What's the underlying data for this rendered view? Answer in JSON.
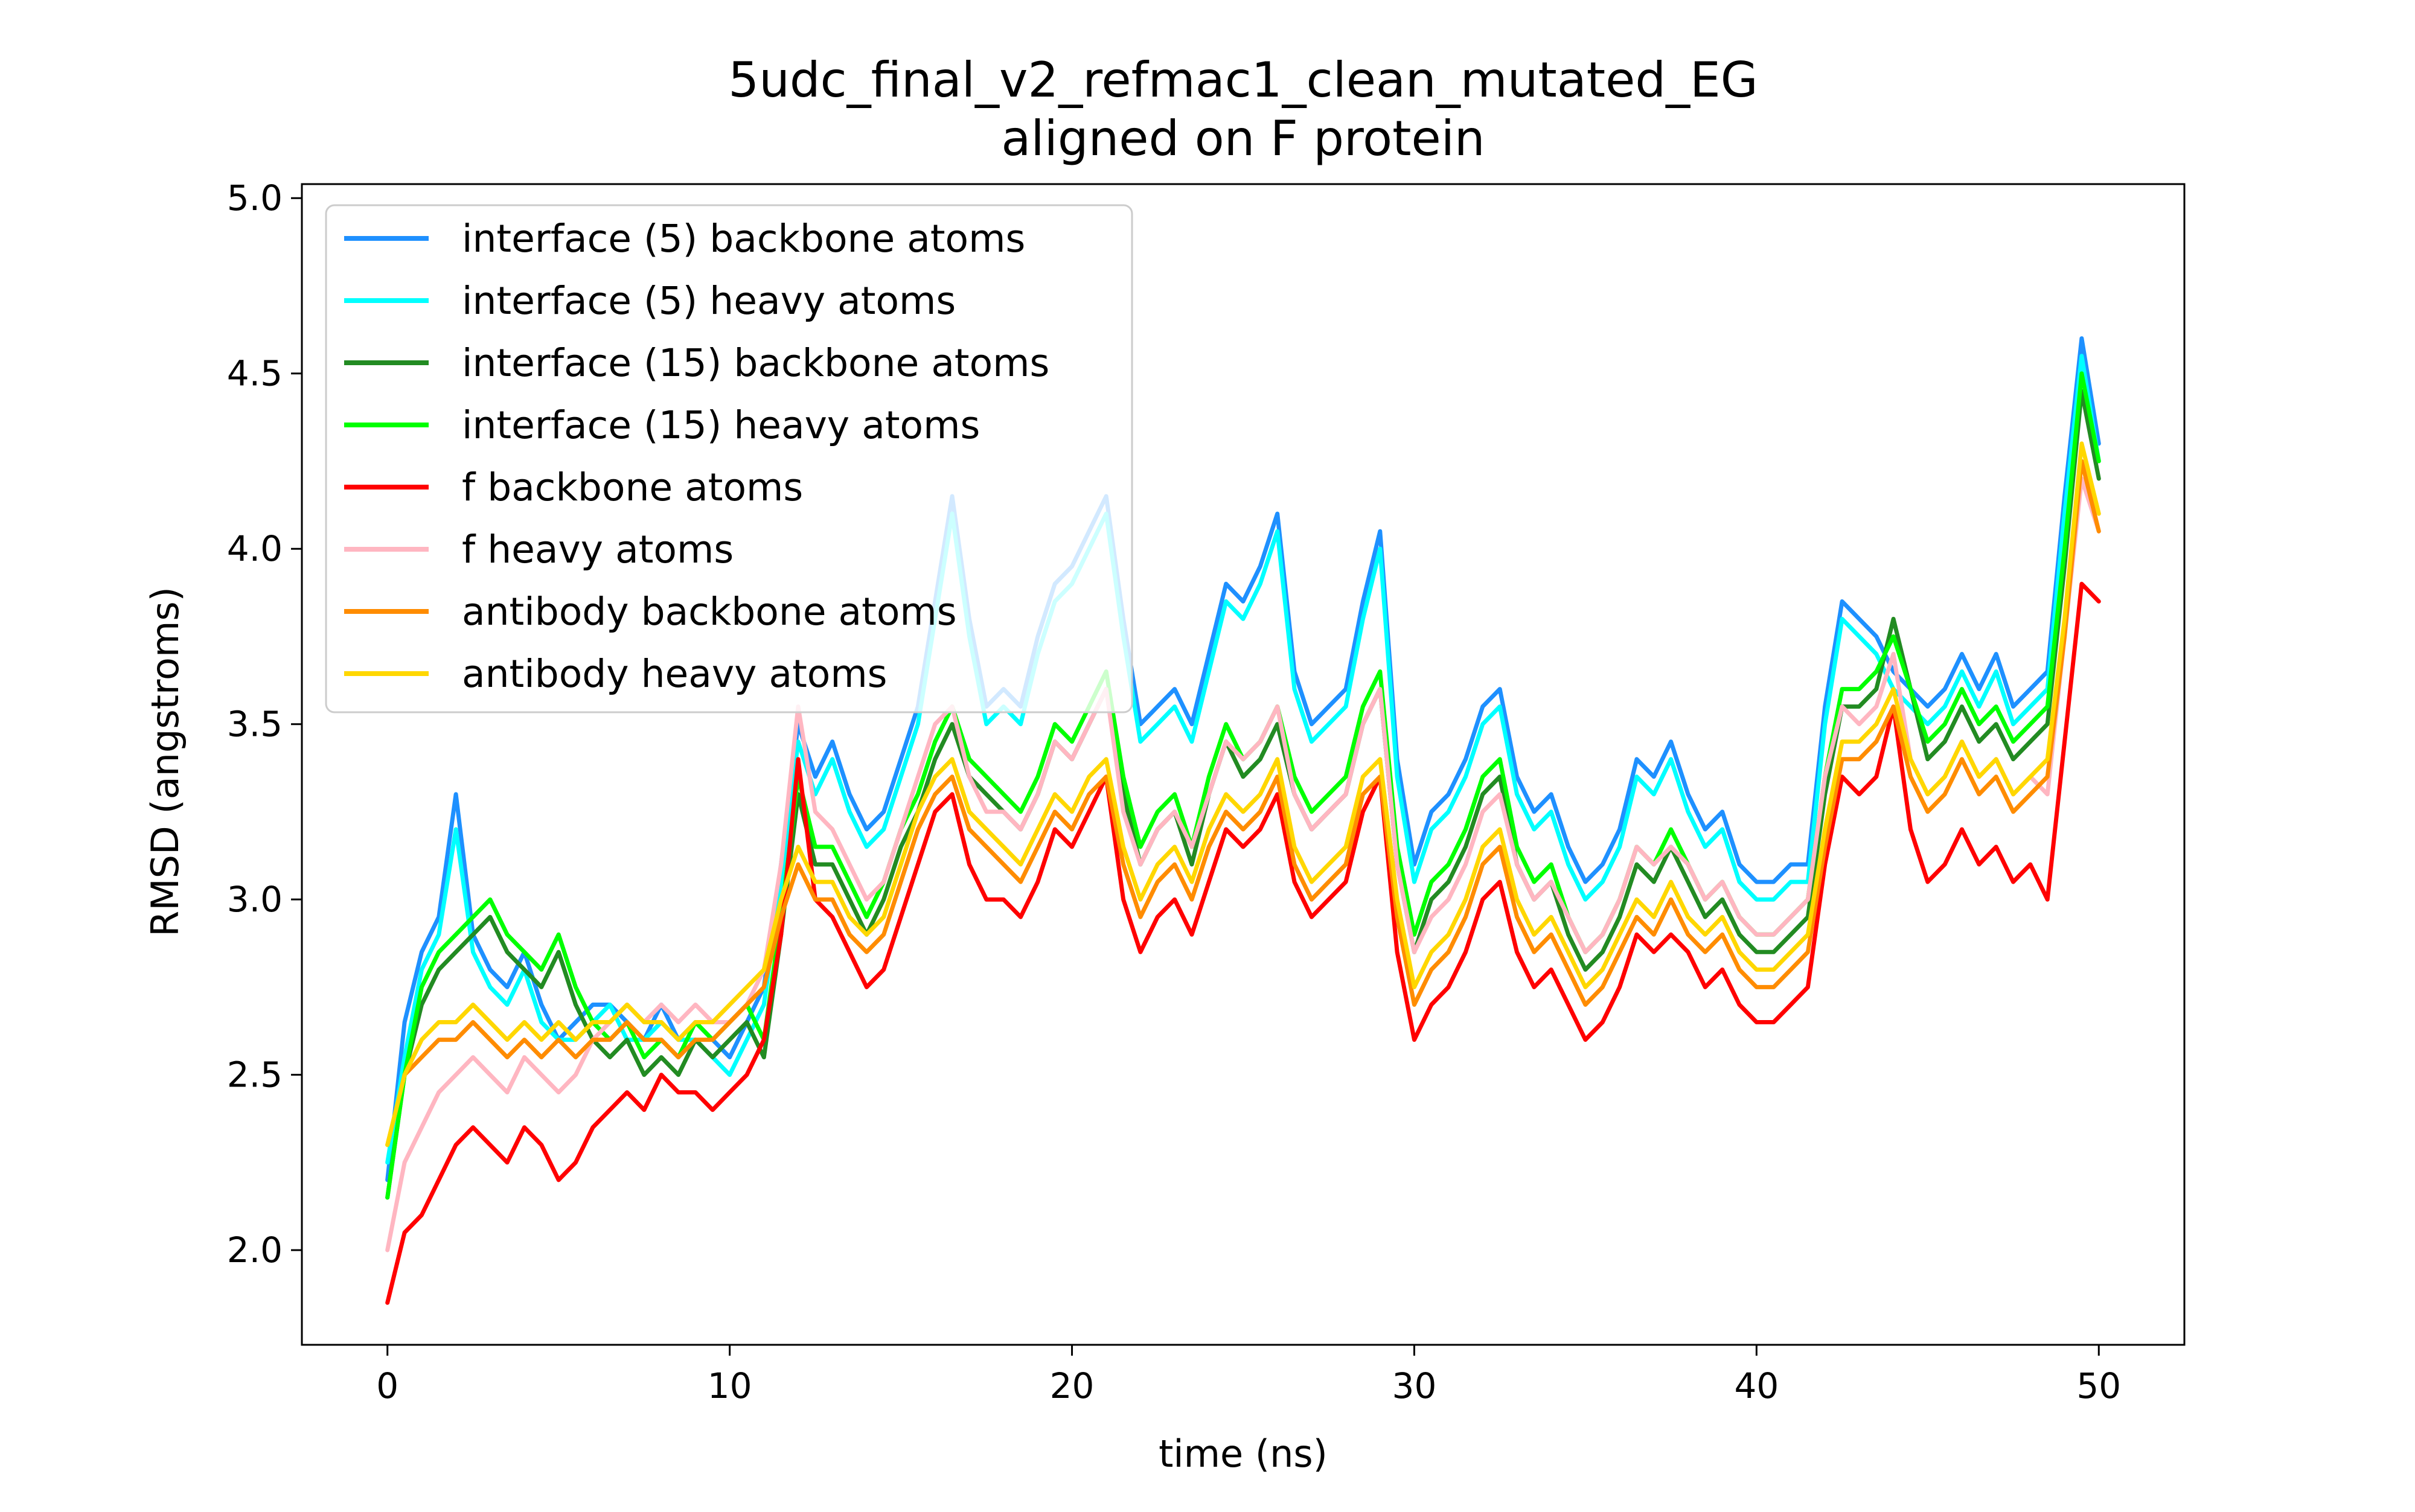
{
  "chart_data": {
    "type": "line",
    "title": "5udc_final_v2_refmac1_clean_mutated_EG",
    "subtitle": "aligned on F protein",
    "xlabel": "time (ns)",
    "ylabel": "RMSD (angstroms)",
    "xlim": [
      -2.5,
      52.5
    ],
    "ylim": [
      1.73,
      5.04
    ],
    "x_ticks": [
      0,
      10,
      20,
      30,
      40,
      50
    ],
    "x_tick_labels": [
      "0",
      "10",
      "20",
      "30",
      "40",
      "50"
    ],
    "y_ticks": [
      2.0,
      2.5,
      3.0,
      3.5,
      4.0,
      4.5,
      5.0
    ],
    "y_tick_labels": [
      "2.0",
      "2.5",
      "3.0",
      "3.5",
      "4.0",
      "4.5",
      "5.0"
    ],
    "grid": false,
    "legend_position": "upper-left",
    "x": [
      0,
      0.5,
      1,
      1.5,
      2,
      2.5,
      3,
      3.5,
      4,
      4.5,
      5,
      5.5,
      6,
      6.5,
      7,
      7.5,
      8,
      8.5,
      9,
      9.5,
      10,
      10.5,
      11,
      11.5,
      12,
      12.5,
      13,
      13.5,
      14,
      14.5,
      15,
      15.5,
      16,
      16.5,
      17,
      17.5,
      18,
      18.5,
      19,
      19.5,
      20,
      20.5,
      21,
      21.5,
      22,
      22.5,
      23,
      23.5,
      24,
      24.5,
      25,
      25.5,
      26,
      26.5,
      27,
      27.5,
      28,
      28.5,
      29,
      29.5,
      30,
      30.5,
      31,
      31.5,
      32,
      32.5,
      33,
      33.5,
      34,
      34.5,
      35,
      35.5,
      36,
      36.5,
      37,
      37.5,
      38,
      38.5,
      39,
      39.5,
      40,
      40.5,
      41,
      41.5,
      42,
      42.5,
      43,
      43.5,
      44,
      44.5,
      45,
      45.5,
      46,
      46.5,
      47,
      47.5,
      48,
      48.5,
      49,
      49.5,
      50
    ],
    "series": [
      {
        "name": "interface (5) backbone atoms",
        "color": "#1e90ff",
        "values": [
          2.2,
          2.65,
          2.85,
          2.95,
          3.3,
          2.9,
          2.8,
          2.75,
          2.85,
          2.7,
          2.6,
          2.65,
          2.7,
          2.7,
          2.65,
          2.6,
          2.7,
          2.6,
          2.65,
          2.6,
          2.55,
          2.65,
          2.75,
          3.1,
          3.5,
          3.35,
          3.45,
          3.3,
          3.2,
          3.25,
          3.4,
          3.55,
          3.85,
          4.15,
          3.8,
          3.55,
          3.6,
          3.55,
          3.75,
          3.9,
          3.95,
          4.05,
          4.15,
          3.8,
          3.5,
          3.55,
          3.6,
          3.5,
          3.7,
          3.9,
          3.85,
          3.95,
          4.1,
          3.65,
          3.5,
          3.55,
          3.6,
          3.85,
          4.05,
          3.4,
          3.1,
          3.25,
          3.3,
          3.4,
          3.55,
          3.6,
          3.35,
          3.25,
          3.3,
          3.15,
          3.05,
          3.1,
          3.2,
          3.4,
          3.35,
          3.45,
          3.3,
          3.2,
          3.25,
          3.1,
          3.05,
          3.05,
          3.1,
          3.1,
          3.55,
          3.85,
          3.8,
          3.75,
          3.65,
          3.6,
          3.55,
          3.6,
          3.7,
          3.6,
          3.7,
          3.55,
          3.6,
          3.65,
          4.15,
          4.6,
          4.3
        ]
      },
      {
        "name": "interface (5) heavy atoms",
        "color": "#00ffff",
        "values": [
          2.25,
          2.55,
          2.8,
          2.9,
          3.2,
          2.85,
          2.75,
          2.7,
          2.8,
          2.65,
          2.6,
          2.6,
          2.65,
          2.7,
          2.6,
          2.6,
          2.65,
          2.6,
          2.6,
          2.55,
          2.5,
          2.6,
          2.7,
          3.05,
          3.45,
          3.3,
          3.4,
          3.25,
          3.15,
          3.2,
          3.35,
          3.5,
          3.8,
          4.1,
          3.75,
          3.5,
          3.55,
          3.5,
          3.7,
          3.85,
          3.9,
          4.0,
          4.1,
          3.75,
          3.45,
          3.5,
          3.55,
          3.45,
          3.65,
          3.85,
          3.8,
          3.9,
          4.05,
          3.6,
          3.45,
          3.5,
          3.55,
          3.8,
          4.0,
          3.35,
          3.05,
          3.2,
          3.25,
          3.35,
          3.5,
          3.55,
          3.3,
          3.2,
          3.25,
          3.1,
          3.0,
          3.05,
          3.15,
          3.35,
          3.3,
          3.4,
          3.25,
          3.15,
          3.2,
          3.05,
          3.0,
          3.0,
          3.05,
          3.05,
          3.5,
          3.8,
          3.75,
          3.7,
          3.6,
          3.55,
          3.5,
          3.55,
          3.65,
          3.55,
          3.65,
          3.5,
          3.55,
          3.6,
          4.1,
          4.55,
          4.25
        ]
      },
      {
        "name": "interface (15) backbone atoms",
        "color": "#228b22",
        "values": [
          2.15,
          2.5,
          2.7,
          2.8,
          2.85,
          2.9,
          2.95,
          2.85,
          2.8,
          2.75,
          2.85,
          2.7,
          2.6,
          2.55,
          2.6,
          2.5,
          2.55,
          2.5,
          2.6,
          2.55,
          2.6,
          2.65,
          2.55,
          2.9,
          3.3,
          3.1,
          3.1,
          3.0,
          2.9,
          3.0,
          3.15,
          3.25,
          3.4,
          3.5,
          3.35,
          3.3,
          3.25,
          3.2,
          3.3,
          3.45,
          3.4,
          3.5,
          3.6,
          3.3,
          3.1,
          3.2,
          3.25,
          3.1,
          3.3,
          3.45,
          3.35,
          3.4,
          3.5,
          3.3,
          3.2,
          3.25,
          3.3,
          3.5,
          3.6,
          3.1,
          2.85,
          3.0,
          3.05,
          3.15,
          3.3,
          3.35,
          3.1,
          3.0,
          3.05,
          2.9,
          2.8,
          2.85,
          2.95,
          3.1,
          3.05,
          3.15,
          3.05,
          2.95,
          3.0,
          2.9,
          2.85,
          2.85,
          2.9,
          2.95,
          3.3,
          3.55,
          3.55,
          3.6,
          3.8,
          3.6,
          3.4,
          3.45,
          3.55,
          3.45,
          3.5,
          3.4,
          3.45,
          3.5,
          3.95,
          4.45,
          4.2
        ]
      },
      {
        "name": "interface (15) heavy atoms",
        "color": "#00ff00",
        "values": [
          2.15,
          2.5,
          2.75,
          2.85,
          2.9,
          2.95,
          3.0,
          2.9,
          2.85,
          2.8,
          2.9,
          2.75,
          2.65,
          2.6,
          2.65,
          2.55,
          2.6,
          2.55,
          2.65,
          2.6,
          2.65,
          2.7,
          2.6,
          2.95,
          3.35,
          3.15,
          3.15,
          3.05,
          2.95,
          3.05,
          3.2,
          3.3,
          3.45,
          3.55,
          3.4,
          3.35,
          3.3,
          3.25,
          3.35,
          3.5,
          3.45,
          3.55,
          3.65,
          3.35,
          3.15,
          3.25,
          3.3,
          3.15,
          3.35,
          3.5,
          3.4,
          3.45,
          3.55,
          3.35,
          3.25,
          3.3,
          3.35,
          3.55,
          3.65,
          3.15,
          2.9,
          3.05,
          3.1,
          3.2,
          3.35,
          3.4,
          3.15,
          3.05,
          3.1,
          2.95,
          2.85,
          2.9,
          3.0,
          3.15,
          3.1,
          3.2,
          3.1,
          3.0,
          3.05,
          2.95,
          2.9,
          2.9,
          2.95,
          3.0,
          3.35,
          3.6,
          3.6,
          3.65,
          3.75,
          3.6,
          3.45,
          3.5,
          3.6,
          3.5,
          3.55,
          3.45,
          3.5,
          3.55,
          4.0,
          4.5,
          4.25
        ]
      },
      {
        "name": "f backbone atoms",
        "color": "#ff0000",
        "values": [
          1.85,
          2.05,
          2.1,
          2.2,
          2.3,
          2.35,
          2.3,
          2.25,
          2.35,
          2.3,
          2.2,
          2.25,
          2.35,
          2.4,
          2.45,
          2.4,
          2.5,
          2.45,
          2.45,
          2.4,
          2.45,
          2.5,
          2.6,
          2.9,
          3.4,
          3.0,
          2.95,
          2.85,
          2.75,
          2.8,
          2.95,
          3.1,
          3.25,
          3.3,
          3.1,
          3.0,
          3.0,
          2.95,
          3.05,
          3.2,
          3.15,
          3.25,
          3.35,
          3.0,
          2.85,
          2.95,
          3.0,
          2.9,
          3.05,
          3.2,
          3.15,
          3.2,
          3.3,
          3.05,
          2.95,
          3.0,
          3.05,
          3.25,
          3.35,
          2.85,
          2.6,
          2.7,
          2.75,
          2.85,
          3.0,
          3.05,
          2.85,
          2.75,
          2.8,
          2.7,
          2.6,
          2.65,
          2.75,
          2.9,
          2.85,
          2.9,
          2.85,
          2.75,
          2.8,
          2.7,
          2.65,
          2.65,
          2.7,
          2.75,
          3.1,
          3.35,
          3.3,
          3.35,
          3.55,
          3.2,
          3.05,
          3.1,
          3.2,
          3.1,
          3.15,
          3.05,
          3.1,
          3.0,
          3.45,
          3.9,
          3.85
        ]
      },
      {
        "name": "f heavy atoms",
        "color": "#ffb6c1",
        "values": [
          2.0,
          2.25,
          2.35,
          2.45,
          2.5,
          2.55,
          2.5,
          2.45,
          2.55,
          2.5,
          2.45,
          2.5,
          2.6,
          2.65,
          2.7,
          2.65,
          2.7,
          2.65,
          2.7,
          2.65,
          2.65,
          2.7,
          2.8,
          3.1,
          3.55,
          3.25,
          3.2,
          3.1,
          3.0,
          3.05,
          3.2,
          3.35,
          3.5,
          3.55,
          3.35,
          3.25,
          3.25,
          3.2,
          3.3,
          3.45,
          3.4,
          3.5,
          3.6,
          3.25,
          3.1,
          3.2,
          3.25,
          3.15,
          3.3,
          3.45,
          3.4,
          3.45,
          3.55,
          3.3,
          3.2,
          3.25,
          3.3,
          3.5,
          3.6,
          3.1,
          2.85,
          2.95,
          3.0,
          3.1,
          3.25,
          3.3,
          3.1,
          3.0,
          3.05,
          2.95,
          2.85,
          2.9,
          3.0,
          3.15,
          3.1,
          3.15,
          3.1,
          3.0,
          3.05,
          2.95,
          2.9,
          2.9,
          2.95,
          3.0,
          3.35,
          3.55,
          3.5,
          3.55,
          3.7,
          3.4,
          3.3,
          3.35,
          3.45,
          3.35,
          3.4,
          3.3,
          3.35,
          3.3,
          3.75,
          4.2,
          4.05
        ]
      },
      {
        "name": "antibody backbone atoms",
        "color": "#ff8c00",
        "values": [
          2.3,
          2.5,
          2.55,
          2.6,
          2.6,
          2.65,
          2.6,
          2.55,
          2.6,
          2.55,
          2.6,
          2.55,
          2.6,
          2.6,
          2.65,
          2.6,
          2.6,
          2.55,
          2.6,
          2.6,
          2.65,
          2.7,
          2.75,
          2.95,
          3.1,
          3.0,
          3.0,
          2.9,
          2.85,
          2.9,
          3.05,
          3.2,
          3.3,
          3.35,
          3.2,
          3.15,
          3.1,
          3.05,
          3.15,
          3.25,
          3.2,
          3.3,
          3.35,
          3.1,
          2.95,
          3.05,
          3.1,
          3.0,
          3.15,
          3.25,
          3.2,
          3.25,
          3.35,
          3.1,
          3.0,
          3.05,
          3.1,
          3.3,
          3.35,
          2.95,
          2.7,
          2.8,
          2.85,
          2.95,
          3.1,
          3.15,
          2.95,
          2.85,
          2.9,
          2.8,
          2.7,
          2.75,
          2.85,
          2.95,
          2.9,
          3.0,
          2.9,
          2.85,
          2.9,
          2.8,
          2.75,
          2.75,
          2.8,
          2.85,
          3.15,
          3.4,
          3.4,
          3.45,
          3.55,
          3.35,
          3.25,
          3.3,
          3.4,
          3.3,
          3.35,
          3.25,
          3.3,
          3.35,
          3.75,
          4.25,
          4.05
        ]
      },
      {
        "name": "antibody heavy atoms",
        "color": "#ffd700",
        "values": [
          2.3,
          2.5,
          2.6,
          2.65,
          2.65,
          2.7,
          2.65,
          2.6,
          2.65,
          2.6,
          2.65,
          2.6,
          2.65,
          2.65,
          2.7,
          2.65,
          2.65,
          2.6,
          2.65,
          2.65,
          2.7,
          2.75,
          2.8,
          3.0,
          3.15,
          3.05,
          3.05,
          2.95,
          2.9,
          2.95,
          3.1,
          3.25,
          3.35,
          3.4,
          3.25,
          3.2,
          3.15,
          3.1,
          3.2,
          3.3,
          3.25,
          3.35,
          3.4,
          3.15,
          3.0,
          3.1,
          3.15,
          3.05,
          3.2,
          3.3,
          3.25,
          3.3,
          3.4,
          3.15,
          3.05,
          3.1,
          3.15,
          3.35,
          3.4,
          3.0,
          2.75,
          2.85,
          2.9,
          3.0,
          3.15,
          3.2,
          3.0,
          2.9,
          2.95,
          2.85,
          2.75,
          2.8,
          2.9,
          3.0,
          2.95,
          3.05,
          2.95,
          2.9,
          2.95,
          2.85,
          2.8,
          2.8,
          2.85,
          2.9,
          3.2,
          3.45,
          3.45,
          3.5,
          3.6,
          3.4,
          3.3,
          3.35,
          3.45,
          3.35,
          3.4,
          3.3,
          3.35,
          3.4,
          3.8,
          4.3,
          4.1
        ]
      }
    ]
  }
}
